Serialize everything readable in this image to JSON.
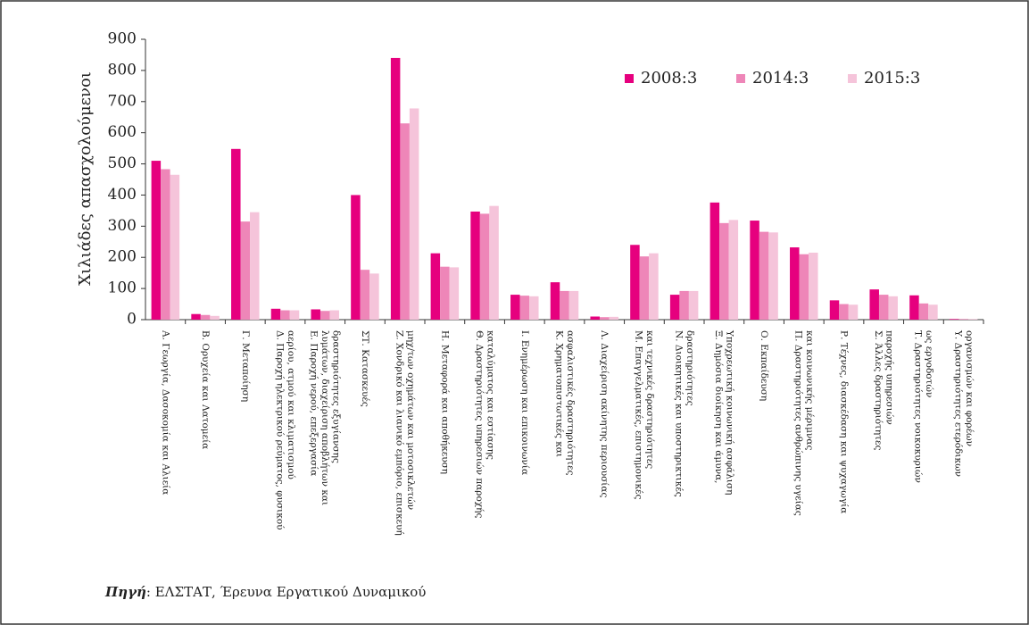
{
  "chart_data": {
    "type": "bar",
    "y_label": "Χιλιάδες απασχολούμενοι",
    "categories": [
      [
        "Α. Γεωργία, Δασοκομία και Αλιεία"
      ],
      [
        "Β. Ορυχεία και Λατομεία"
      ],
      [
        "Γ. Μεταποίηση"
      ],
      [
        "Δ. Παροχή ηλεκτρικού ρεύματος, φυσικού",
        "αερίου, ατμού και κλιματισμού"
      ],
      [
        "Ε. Παροχή νερού, επεξεργασία",
        "λυμάτων, διαχείριση αποβλήτων και",
        "δραστηριότητες εξυγίανσης"
      ],
      [
        "ΣΤ. Κατασκευές"
      ],
      [
        "Ζ. Χονδρικό και λιανικό εμπόριο, επισκευή",
        "μηχ/των οχημάτων και μοτοσικλετών"
      ],
      [
        "Η. Μεταφορά και αποθήκευση"
      ],
      [
        "Θ. Δραστηριότητες υπηρεσιών παροχής",
        "καταλύματος και εστίασης"
      ],
      [
        "Ι. Ενημέρωση και επικοινωνία"
      ],
      [
        "Κ. Χρηματοπιστωτικές και",
        "ασφαλιστικές δραστηριότητες"
      ],
      [
        "Λ. Διαχείριση ακίνητης περιουσίας"
      ],
      [
        "Μ. Επαγγελματικές, επιστημονικές",
        "και τεχνικές δραστηριότητες"
      ],
      [
        "Ν. Διοικητικές και υποστηρικτικές",
        "δραστηριότητες"
      ],
      [
        "Ξ. Δημόσια διοίκηση και άμυνα,",
        "Υποχρεωτική κοινωνική ασφάλιση"
      ],
      [
        "Ο. Εκπαίδευση"
      ],
      [
        "Π. Δραστηριότητες ανθρώπινης υγείας",
        "και κοινωνικής μέριμνας"
      ],
      [
        "Ρ. Τέχνες, διασκέδαση και ψυχαγωγία"
      ],
      [
        "Σ. Άλλες δραστηριότητες",
        "παροχής υπηρεσιών"
      ],
      [
        "Τ. Δραστηριότητες νοικοκυριών",
        "ως εργοδοτών"
      ],
      [
        "Υ. Δραστηριότητες ετερόδικων",
        "οργανισμών και φορέων"
      ]
    ],
    "series": [
      {
        "name": "2008:3",
        "color": "#e6007e",
        "values": [
          510,
          18,
          548,
          35,
          33,
          400,
          840,
          213,
          347,
          80,
          120,
          10,
          240,
          80,
          376,
          318,
          232,
          62,
          97,
          78,
          2
        ]
      },
      {
        "name": "2014:3",
        "color": "#ee86b8",
        "values": [
          483,
          15,
          315,
          30,
          28,
          160,
          630,
          170,
          340,
          77,
          92,
          8,
          203,
          92,
          310,
          282,
          210,
          50,
          80,
          52,
          2
        ]
      },
      {
        "name": "2015:3",
        "color": "#f5c4da",
        "values": [
          465,
          12,
          345,
          30,
          30,
          148,
          678,
          168,
          365,
          75,
          92,
          9,
          213,
          92,
          320,
          280,
          215,
          48,
          75,
          48,
          2
        ]
      }
    ],
    "ylim": [
      0,
      900
    ],
    "yticks": [
      0,
      100,
      200,
      300,
      400,
      500,
      600,
      700,
      800,
      900
    ],
    "legend": "top-right",
    "source": {
      "label": "Πηγή",
      "text": ": ΕΛΣΤΑΤ, Έρευνα Εργατικού Δυναμικού"
    }
  }
}
